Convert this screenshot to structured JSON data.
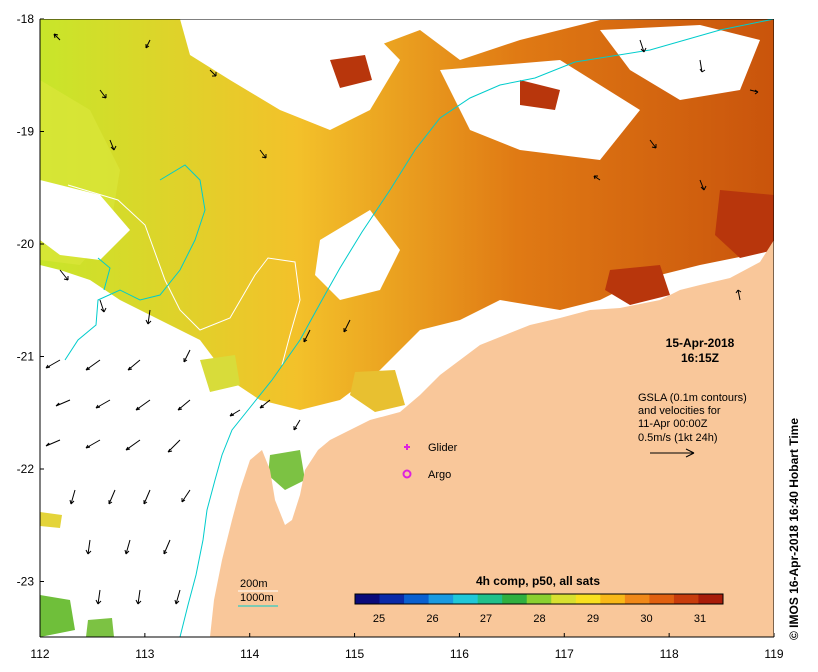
{
  "map": {
    "x_axis": {
      "ticks": [
        "112",
        "113",
        "114",
        "115",
        "116",
        "117",
        "118",
        "119"
      ]
    },
    "y_axis": {
      "ticks": [
        "-18",
        "-19",
        "-20",
        "-21",
        "-22",
        "-23"
      ]
    },
    "datetime": {
      "date": "15-Apr-2018",
      "time": "16:15Z"
    },
    "gsla": {
      "line1": "GSLA (0.1m contours)",
      "line2": "and velocities for",
      "line3": "11-Apr 00:00Z",
      "line4": "0.5m/s (1kt 24h)"
    },
    "legend": {
      "glider": "Glider",
      "argo": "Argo"
    },
    "isobaths": {
      "label_200": "200m",
      "label_1000": "1000m"
    },
    "colorbar": {
      "title": "4h comp, p50, all sats",
      "labels": [
        "25",
        "26",
        "27",
        "28",
        "29",
        "30",
        "31"
      ]
    },
    "credit": "©  IMOS 16-Apr-2018 16:40 Hobart Time",
    "colors": {
      "land": "#f9c79a",
      "contour": "#00cccc",
      "marker": "#dd22dd"
    }
  }
}
